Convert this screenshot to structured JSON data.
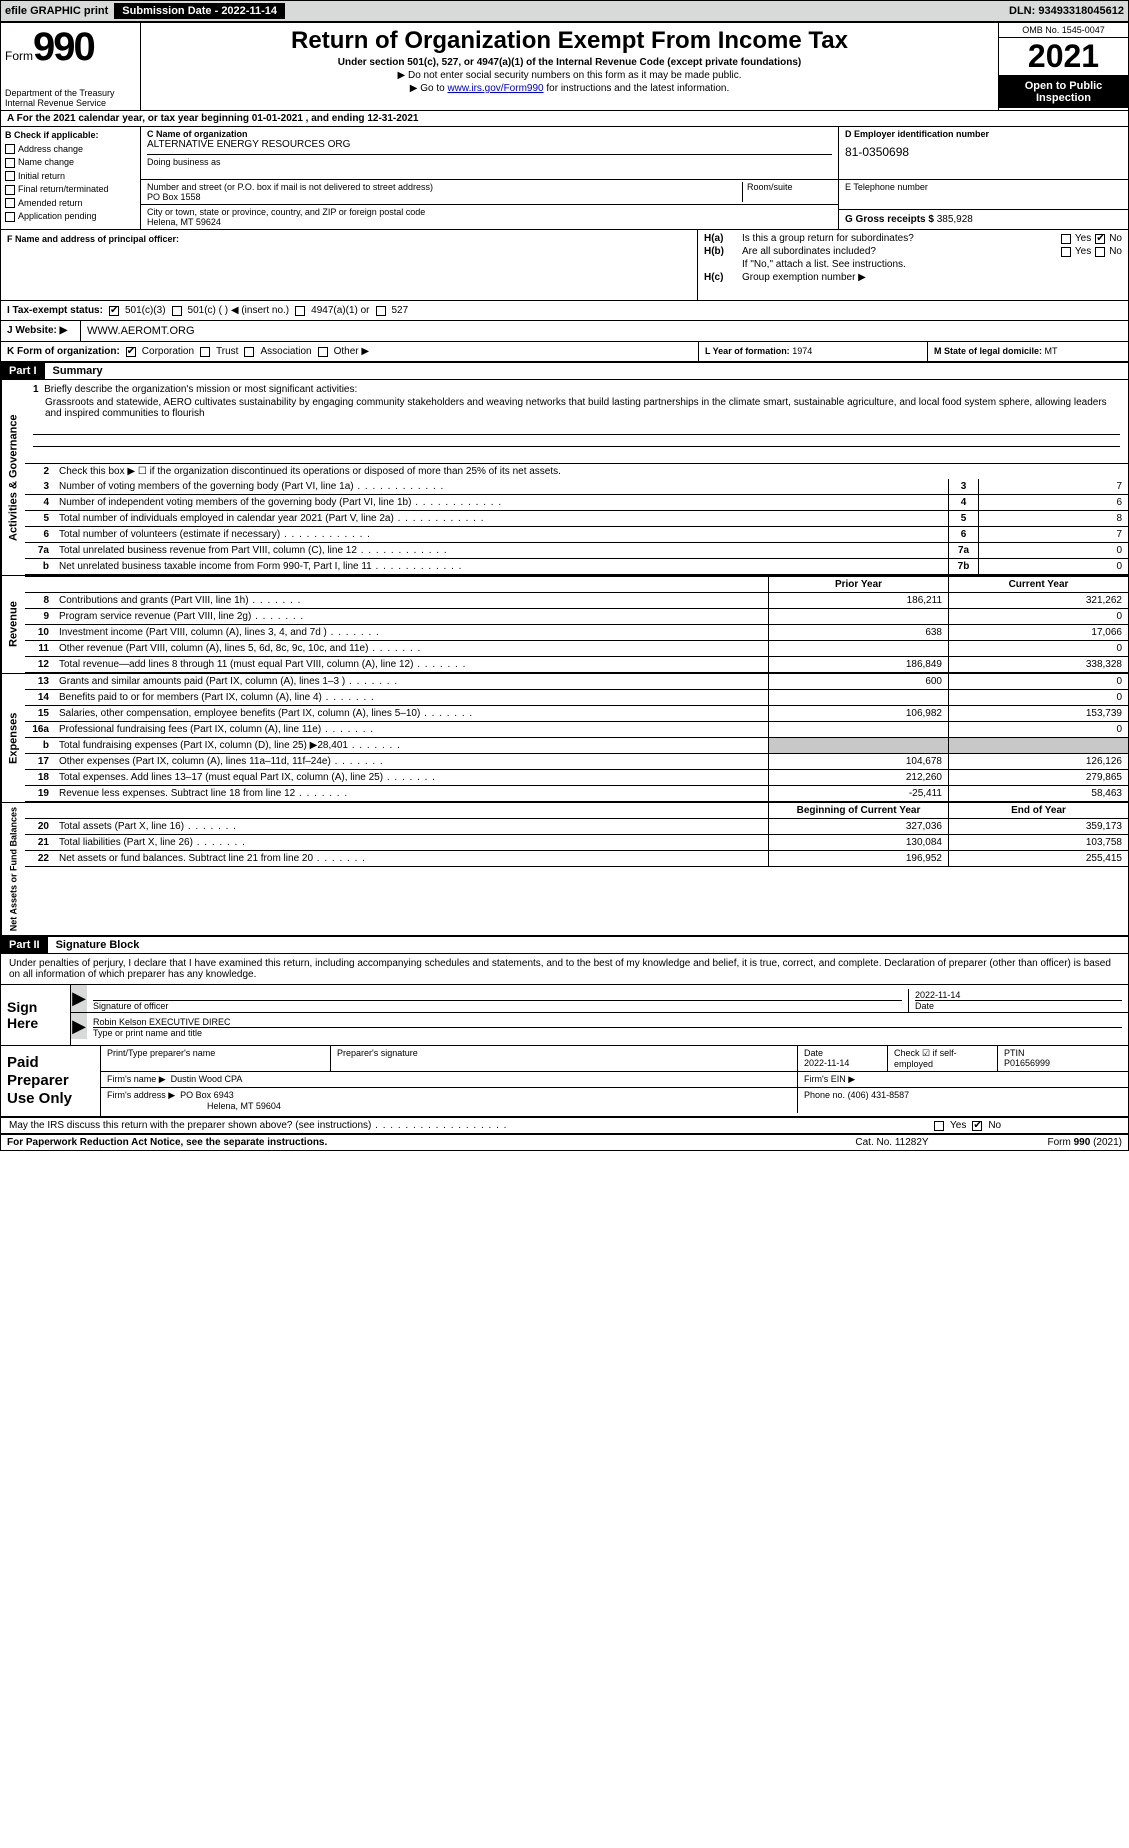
{
  "topbar": {
    "efile": "efile GRAPHIC print",
    "submission_label": "Submission Date - 2022-11-14",
    "dln": "DLN: 93493318045612"
  },
  "header": {
    "form_word": "Form",
    "form_number": "990",
    "dept": "Department of the Treasury",
    "irs": "Internal Revenue Service",
    "title": "Return of Organization Exempt From Income Tax",
    "sub1": "Under section 501(c), 527, or 4947(a)(1) of the Internal Revenue Code (except private foundations)",
    "sub2": "▶ Do not enter social security numbers on this form as it may be made public.",
    "sub3_pre": "▶ Go to ",
    "sub3_link": "www.irs.gov/Form990",
    "sub3_post": " for instructions and the latest information.",
    "omb": "OMB No. 1545-0047",
    "year": "2021",
    "open": "Open to Public Inspection"
  },
  "row_a": "A For the 2021 calendar year, or tax year beginning 01-01-2021     , and ending 12-31-2021",
  "col_b": {
    "title": "B Check if applicable:",
    "items": [
      "Address change",
      "Name change",
      "Initial return",
      "Final return/terminated",
      "Amended return",
      "Application pending"
    ]
  },
  "c": {
    "label": "C Name of organization",
    "name": "ALTERNATIVE ENERGY RESOURCES ORG",
    "dba_label": "Doing business as",
    "street_label": "Number and street (or P.O. box if mail is not delivered to street address)",
    "street": "PO Box 1558",
    "room_label": "Room/suite",
    "city_label": "City or town, state or province, country, and ZIP or foreign postal code",
    "city": "Helena, MT  59624"
  },
  "d": {
    "label": "D Employer identification number",
    "val": "81-0350698"
  },
  "e": {
    "label": "E Telephone number"
  },
  "g": {
    "label": "G Gross receipts $",
    "val": "385,928"
  },
  "f": {
    "label": "F  Name and address of principal officer:"
  },
  "h": {
    "a_label": "H(a)",
    "a_txt": "Is this a group return for subordinates?",
    "b_label": "H(b)",
    "b_txt": "Are all subordinates included?",
    "b_note": "If \"No,\" attach a list. See instructions.",
    "c_label": "H(c)",
    "c_txt": "Group exemption number ▶",
    "yes": "Yes",
    "no": "No"
  },
  "i": {
    "label": "I   Tax-exempt status:",
    "o1": "501(c)(3)",
    "o2": "501(c) (  ) ◀ (insert no.)",
    "o3": "4947(a)(1) or",
    "o4": "527"
  },
  "j": {
    "label": "J   Website: ▶",
    "val": "WWW.AEROMT.ORG"
  },
  "k": {
    "label": "K Form of organization:",
    "o1": "Corporation",
    "o2": "Trust",
    "o3": "Association",
    "o4": "Other ▶"
  },
  "l": {
    "label": "L Year of formation:",
    "val": "1974"
  },
  "m": {
    "label": "M State of legal domicile:",
    "val": "MT"
  },
  "part1": {
    "hdr": "Part I",
    "title": "Summary"
  },
  "mission": {
    "num": "1",
    "label": "Briefly describe the organization's mission or most significant activities:",
    "text": "Grassroots and statewide, AERO cultivates sustainability by engaging community stakeholders and weaving networks that build lasting partnerships in the climate smart, sustainable agriculture, and local food system sphere, allowing leaders and inspired communities to flourish"
  },
  "gov": {
    "tab": "Activities & Governance",
    "l2": "Check this box ▶ ☐  if the organization discontinued its operations or disposed of more than 25% of its net assets.",
    "rows": [
      {
        "n": "3",
        "d": "Number of voting members of the governing body (Part VI, line 1a)",
        "b": "3",
        "v": "7"
      },
      {
        "n": "4",
        "d": "Number of independent voting members of the governing body (Part VI, line 1b)",
        "b": "4",
        "v": "6"
      },
      {
        "n": "5",
        "d": "Total number of individuals employed in calendar year 2021 (Part V, line 2a)",
        "b": "5",
        "v": "8"
      },
      {
        "n": "6",
        "d": "Total number of volunteers (estimate if necessary)",
        "b": "6",
        "v": "7"
      },
      {
        "n": "7a",
        "d": "Total unrelated business revenue from Part VIII, column (C), line 12",
        "b": "7a",
        "v": "0"
      },
      {
        "n": "b",
        "d": "Net unrelated business taxable income from Form 990-T, Part I, line 11",
        "b": "7b",
        "v": "0"
      }
    ]
  },
  "cols": {
    "prior": "Prior Year",
    "current": "Current Year",
    "begin": "Beginning of Current Year",
    "end": "End of Year"
  },
  "rev": {
    "tab": "Revenue",
    "rows": [
      {
        "n": "8",
        "d": "Contributions and grants (Part VIII, line 1h)",
        "p": "186,211",
        "c": "321,262"
      },
      {
        "n": "9",
        "d": "Program service revenue (Part VIII, line 2g)",
        "p": "",
        "c": "0"
      },
      {
        "n": "10",
        "d": "Investment income (Part VIII, column (A), lines 3, 4, and 7d )",
        "p": "638",
        "c": "17,066"
      },
      {
        "n": "11",
        "d": "Other revenue (Part VIII, column (A), lines 5, 6d, 8c, 9c, 10c, and 11e)",
        "p": "",
        "c": "0"
      },
      {
        "n": "12",
        "d": "Total revenue—add lines 8 through 11 (must equal Part VIII, column (A), line 12)",
        "p": "186,849",
        "c": "338,328"
      }
    ]
  },
  "exp": {
    "tab": "Expenses",
    "rows": [
      {
        "n": "13",
        "d": "Grants and similar amounts paid (Part IX, column (A), lines 1–3 )",
        "p": "600",
        "c": "0"
      },
      {
        "n": "14",
        "d": "Benefits paid to or for members (Part IX, column (A), line 4)",
        "p": "",
        "c": "0"
      },
      {
        "n": "15",
        "d": "Salaries, other compensation, employee benefits (Part IX, column (A), lines 5–10)",
        "p": "106,982",
        "c": "153,739"
      },
      {
        "n": "16a",
        "d": "Professional fundraising fees (Part IX, column (A), line 11e)",
        "p": "",
        "c": "0"
      },
      {
        "n": "b",
        "d": "Total fundraising expenses (Part IX, column (D), line 25) ▶28,401",
        "p": "shade",
        "c": "shade"
      },
      {
        "n": "17",
        "d": "Other expenses (Part IX, column (A), lines 11a–11d, 11f–24e)",
        "p": "104,678",
        "c": "126,126"
      },
      {
        "n": "18",
        "d": "Total expenses. Add lines 13–17 (must equal Part IX, column (A), line 25)",
        "p": "212,260",
        "c": "279,865"
      },
      {
        "n": "19",
        "d": "Revenue less expenses. Subtract line 18 from line 12",
        "p": "-25,411",
        "c": "58,463"
      }
    ]
  },
  "net": {
    "tab": "Net Assets or Fund Balances",
    "rows": [
      {
        "n": "20",
        "d": "Total assets (Part X, line 16)",
        "p": "327,036",
        "c": "359,173"
      },
      {
        "n": "21",
        "d": "Total liabilities (Part X, line 26)",
        "p": "130,084",
        "c": "103,758"
      },
      {
        "n": "22",
        "d": "Net assets or fund balances. Subtract line 21 from line 20",
        "p": "196,952",
        "c": "255,415"
      }
    ]
  },
  "part2": {
    "hdr": "Part II",
    "title": "Signature Block"
  },
  "sig": {
    "intro": "Under penalties of perjury, I declare that I have examined this return, including accompanying schedules and statements, and to the best of my knowledge and belief, it is true, correct, and complete. Declaration of preparer (other than officer) is based on all information of which preparer has any knowledge.",
    "sign_here": "Sign Here",
    "sig_label": "Signature of officer",
    "date_label": "Date",
    "date_val": "2022-11-14",
    "name": "Robin Kelson  EXECUTIVE DIREC",
    "name_label": "Type or print name and title"
  },
  "prep": {
    "label": "Paid Preparer Use Only",
    "h1": "Print/Type preparer's name",
    "h2": "Preparer's signature",
    "h3": "Date",
    "h3v": "2022-11-14",
    "h4": "Check ☑ if self-employed",
    "h5": "PTIN",
    "h5v": "P01656999",
    "firm_name_l": "Firm's name    ▶",
    "firm_name": "Dustin Wood CPA",
    "firm_ein_l": "Firm's EIN ▶",
    "firm_addr_l": "Firm's address ▶",
    "firm_addr1": "PO Box 6943",
    "firm_addr2": "Helena, MT  59604",
    "phone_l": "Phone no.",
    "phone": "(406) 431-8587"
  },
  "may": {
    "q": "May the IRS discuss this return with the preparer shown above? (see instructions)",
    "yes": "Yes",
    "no": "No"
  },
  "footer": {
    "l": "For Paperwork Reduction Act Notice, see the separate instructions.",
    "m": "Cat. No. 11282Y",
    "r": "Form 990 (2021)"
  }
}
